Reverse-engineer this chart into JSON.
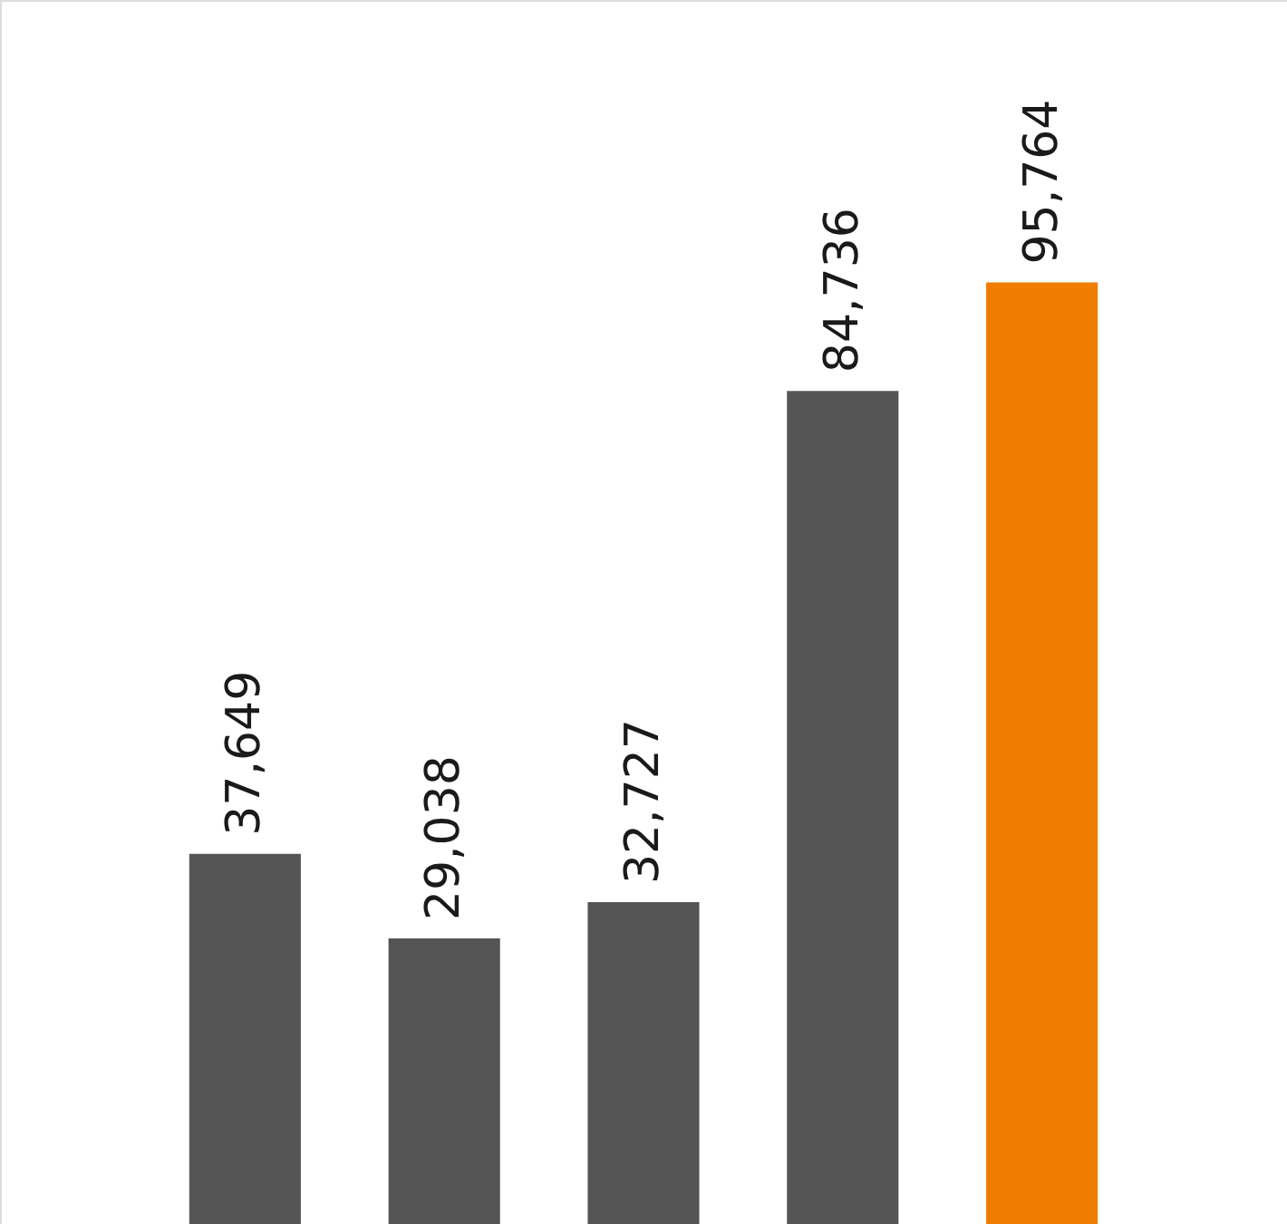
{
  "chart_data": {
    "type": "bar",
    "categories": [
      null,
      null,
      null,
      null,
      null
    ],
    "values": [
      37649,
      29038,
      32727,
      84736,
      95764
    ],
    "value_labels": [
      "37,649",
      "29,038",
      "32,727",
      "84,736",
      "95,764"
    ],
    "colors": [
      "#555555",
      "#555555",
      "#555555",
      "#555555",
      "#f07d00"
    ],
    "tick_labels": false
  }
}
